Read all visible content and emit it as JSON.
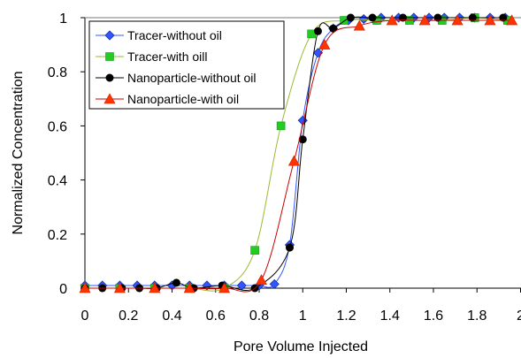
{
  "chart_data": {
    "type": "scatter",
    "xlabel": "Pore Volume Injected",
    "ylabel": "Normalized Concentration",
    "xlim": [
      0,
      2
    ],
    "ylim": [
      0,
      1
    ],
    "x_ticks": [
      "0",
      "0.2",
      "0.4",
      "0.6",
      "0.8",
      "1",
      "1.2",
      "1.4",
      "1.6",
      "1.8",
      "2"
    ],
    "y_ticks": [
      "0",
      "0.2",
      "0.4",
      "0.6",
      "0.8",
      "1"
    ],
    "grid": false,
    "legend_position": "top-left",
    "series": [
      {
        "name": "Tracer-without oil",
        "color": "#3355ff",
        "marker": "diamond",
        "line_style": "solid",
        "points": [
          [
            0.0,
            0.01
          ],
          [
            0.08,
            0.01
          ],
          [
            0.16,
            0.01
          ],
          [
            0.24,
            0.01
          ],
          [
            0.32,
            0.01
          ],
          [
            0.4,
            0.01
          ],
          [
            0.48,
            0.01
          ],
          [
            0.56,
            0.01
          ],
          [
            0.64,
            0.01
          ],
          [
            0.72,
            0.01
          ],
          [
            0.8,
            0.01
          ],
          [
            0.87,
            0.015
          ],
          [
            0.94,
            0.16
          ],
          [
            1.0,
            0.62
          ],
          [
            1.07,
            0.87
          ],
          [
            1.14,
            0.96
          ],
          [
            1.21,
            0.99
          ],
          [
            1.28,
            0.995
          ],
          [
            1.36,
            1.0
          ],
          [
            1.44,
            1.0
          ],
          [
            1.51,
            1.0
          ],
          [
            1.58,
            1.0
          ],
          [
            1.65,
            1.0
          ],
          [
            1.72,
            1.0
          ],
          [
            1.79,
            1.0
          ],
          [
            1.86,
            1.0
          ],
          [
            1.93,
            1.0
          ]
        ]
      },
      {
        "name": "Tracer-with oill",
        "color": "#22cc22",
        "marker": "square",
        "line_style": "solid",
        "points": [
          [
            0.0,
            0.0
          ],
          [
            0.16,
            0.0
          ],
          [
            0.32,
            0.0
          ],
          [
            0.48,
            0.0
          ],
          [
            0.64,
            0.0
          ],
          [
            0.78,
            0.14
          ],
          [
            0.9,
            0.6
          ],
          [
            1.04,
            0.94
          ],
          [
            1.19,
            0.99
          ],
          [
            1.34,
            0.99
          ],
          [
            1.49,
            0.99
          ],
          [
            1.64,
            0.99
          ],
          [
            1.79,
            1.0
          ],
          [
            1.94,
            0.99
          ]
        ]
      },
      {
        "name": "Nanoparticle-without oil",
        "color": "#000000",
        "marker": "circle",
        "line_style": "solid",
        "points": [
          [
            0.0,
            0.0
          ],
          [
            0.08,
            0.0
          ],
          [
            0.17,
            0.0
          ],
          [
            0.25,
            0.0
          ],
          [
            0.33,
            0.0
          ],
          [
            0.42,
            0.02
          ],
          [
            0.5,
            0.0
          ],
          [
            0.63,
            0.01
          ],
          [
            0.78,
            0.0
          ],
          [
            0.94,
            0.15
          ],
          [
            1.0,
            0.55
          ],
          [
            1.07,
            0.95
          ],
          [
            1.14,
            0.96
          ],
          [
            1.22,
            1.0
          ],
          [
            1.32,
            1.0
          ],
          [
            1.46,
            1.0
          ],
          [
            1.62,
            1.0
          ],
          [
            1.78,
            1.0
          ],
          [
            1.92,
            1.0
          ]
        ]
      },
      {
        "name": "Nanoparticle-with oil",
        "color": "#ff3300",
        "line_color": "#cc0000",
        "marker": "triangle",
        "line_style": "solid",
        "points": [
          [
            0.0,
            0.0
          ],
          [
            0.16,
            0.0
          ],
          [
            0.32,
            0.0
          ],
          [
            0.48,
            0.0
          ],
          [
            0.64,
            0.0
          ],
          [
            0.81,
            0.03
          ],
          [
            0.96,
            0.47
          ],
          [
            1.1,
            0.9
          ],
          [
            1.26,
            0.97
          ],
          [
            1.41,
            0.99
          ],
          [
            1.56,
            0.99
          ],
          [
            1.71,
            0.99
          ],
          [
            1.86,
            0.99
          ],
          [
            1.96,
            0.99
          ]
        ]
      }
    ]
  }
}
